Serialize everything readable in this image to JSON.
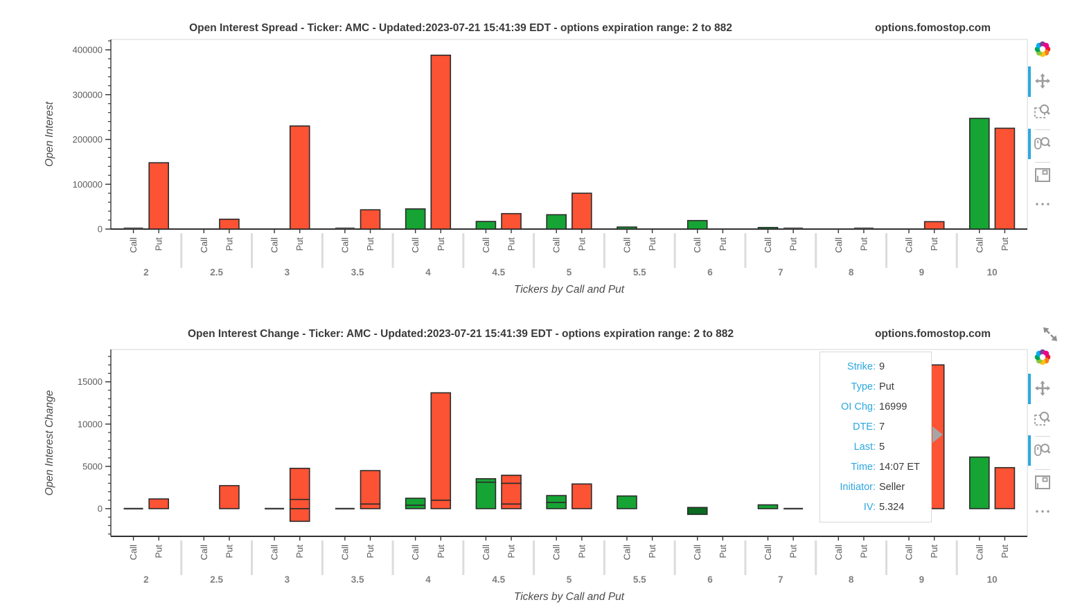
{
  "site": "options.fomostop.com",
  "charts": [
    {
      "title": "Open Interest Spread - Ticker: AMC - Updated:2023-07-21 15:41:39 EDT - options expiration range: 2 to 882",
      "watermark": "options.fomostop.com"
    },
    {
      "title": "Open Interest Change - Ticker: AMC - Updated:2023-07-21 15:41:39 EDT - options expiration range: 2 to 882",
      "watermark": "options.fomostop.com"
    }
  ],
  "chart_data": [
    {
      "type": "bar",
      "title": "Open Interest Spread",
      "categories": [
        "2",
        "2.5",
        "3",
        "3.5",
        "4",
        "4.5",
        "5",
        "5.5",
        "6",
        "7",
        "8",
        "9",
        "10"
      ],
      "series": [
        {
          "name": "Call",
          "color_key": "call",
          "values": [
            1800,
            0,
            0,
            900,
            45000,
            17000,
            32000,
            4500,
            19000,
            3500,
            0,
            0,
            247000
          ]
        },
        {
          "name": "Put",
          "color_key": "put",
          "values": [
            148000,
            22000,
            230000,
            43000,
            388000,
            34500,
            80000,
            0,
            0,
            2800,
            1700,
            16500,
            225000
          ]
        }
      ],
      "xlabel": "Tickers by Call and Put",
      "ylabel": "Open Interest",
      "ylim": [
        0,
        423000
      ],
      "y_ticks": [
        0,
        100000,
        200000,
        300000,
        400000
      ],
      "minor_step": 20000,
      "grid": false,
      "legend": "none"
    },
    {
      "type": "stacked_bar",
      "title": "Open Interest Change",
      "categories": [
        "2",
        "2.5",
        "3",
        "3.5",
        "4",
        "4.5",
        "5",
        "5.5",
        "6",
        "7",
        "8",
        "9",
        "10"
      ],
      "series": [
        {
          "name": "Call",
          "color_key": "call",
          "segments": [
            [
              [
                0,
                0
              ]
            ],
            null,
            [
              [
                0,
                0
              ]
            ],
            [
              [
                0,
                0
              ]
            ],
            [
              [
                0,
                410
              ],
              [
                410,
                1230
              ]
            ],
            [
              [
                0,
                3130
              ],
              [
                3130,
                3540
              ]
            ],
            [
              [
                0,
                740
              ],
              [
                740,
                1550
              ]
            ],
            [
              [
                0,
                1500
              ]
            ],
            [
              [
                -680,
                140
              ]
            ],
            [
              [
                0,
                450
              ]
            ],
            null,
            null,
            [
              [
                0,
                6100
              ]
            ]
          ]
        },
        {
          "name": "Put",
          "color_key": "put",
          "segments": [
            [
              [
                0,
                1150
              ]
            ],
            [
              [
                0,
                2725
              ]
            ],
            [
              [
                -1500,
                0
              ],
              [
                0,
                1090
              ],
              [
                1090,
                4770
              ]
            ],
            [
              [
                0,
                550
              ],
              [
                550,
                4500
              ]
            ],
            [
              [
                0,
                1000
              ],
              [
                1000,
                13700
              ]
            ],
            [
              [
                0,
                550
              ],
              [
                550,
                3000
              ],
              [
                3000,
                3950
              ]
            ],
            [
              [
                0,
                2920
              ]
            ],
            null,
            null,
            [
              [
                0,
                0
              ]
            ],
            null,
            [
              [
                0,
                16999
              ]
            ],
            [
              [
                0,
                4850
              ]
            ]
          ]
        }
      ],
      "xlabel": "Tickers by Call and Put",
      "ylabel": "Open Interest Change",
      "ylim": [
        -3300,
        18800
      ],
      "y_ticks": [
        0,
        5000,
        10000,
        15000
      ],
      "minor_step": 1000,
      "grid": false,
      "legend": "none"
    }
  ],
  "tooltip": {
    "rows": [
      {
        "label": "Strike:",
        "value": "9"
      },
      {
        "label": "Type:",
        "value": "Put"
      },
      {
        "label": "OI Chg:",
        "value": "16999"
      },
      {
        "label": "DTE:",
        "value": "7"
      },
      {
        "label": "Last:",
        "value": "5"
      },
      {
        "label": "Time:",
        "value": "14:07 ET"
      },
      {
        "label": "Initiator:",
        "value": "Seller"
      },
      {
        "label": "IV:",
        "value": "5.324"
      }
    ]
  },
  "toolbar": {
    "icons": [
      "bokeh-logo",
      "pan-tool",
      "box-zoom-tool",
      "wheel-zoom-tool",
      "save-tool",
      "more-tool"
    ],
    "active_tools": [
      "pan-tool",
      "wheel-zoom-tool"
    ]
  },
  "colors": {
    "call": "#16A434",
    "call_dark": "#0B6B21",
    "put": "#FB5334",
    "bar_border": "#2B2B2B",
    "flat_line": "#4A4A4A",
    "active_blue": "#2DA9DF",
    "tooltip_label": "#2CA6E0",
    "axis_text": "#5a5a5a",
    "group_text": "#7f7f7f"
  }
}
